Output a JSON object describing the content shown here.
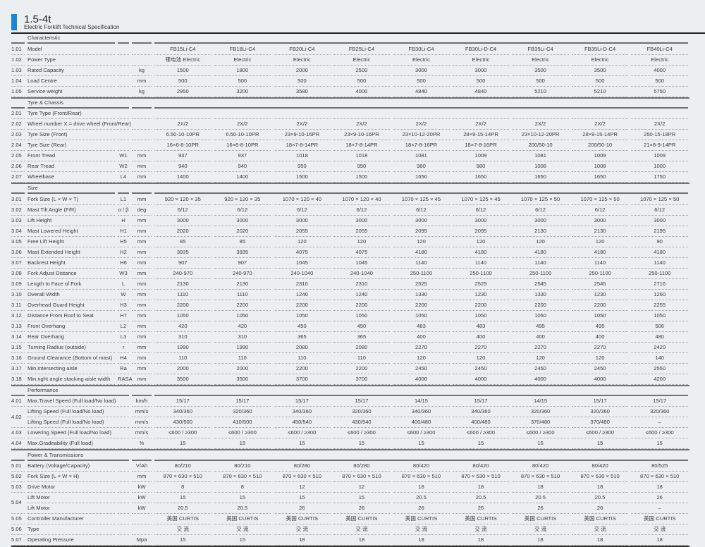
{
  "header": {
    "title": "1.5-4t",
    "subtitle": "Electric Forklift Technical Specification",
    "accent": "#1a86d3"
  },
  "sections": [
    {
      "title": "Characteristic",
      "merged": false,
      "rows": [
        {
          "num": "1.01",
          "label": "Model",
          "sym": "",
          "unit": "",
          "values": [
            "FB15Li-C4",
            "FB18Li-C4",
            "FB20Li-C4",
            "FB25Li-C4",
            "FB30Li-C4",
            "FB30Li-D-C4",
            "FB35Li-C4",
            "FB35Li-D-C4",
            "FB40Li-C4"
          ]
        },
        {
          "num": "1.02",
          "label": "Power Type",
          "sym": "",
          "unit": "",
          "values": [
            "锂电池  Electric",
            "Electric",
            "Electric",
            "Electric",
            "Electric",
            "Electric",
            "Electric",
            "Electric",
            "Electric"
          ]
        },
        {
          "num": "1.03",
          "label": "Rated Capacity",
          "sym": "",
          "unit": "kg",
          "values": [
            "1500",
            "1800",
            "2000",
            "2500",
            "3000",
            "3000",
            "3500",
            "3500",
            "4000"
          ]
        },
        {
          "num": "1.04",
          "label": "Load Centre",
          "sym": "",
          "unit": "mm",
          "values": [
            "500",
            "500",
            "500",
            "500",
            "500",
            "500",
            "500",
            "500",
            "500"
          ]
        },
        {
          "num": "1.05",
          "label": "Service weight",
          "sym": "",
          "unit": "kg",
          "values": [
            "2950",
            "3200",
            "3580",
            "4000",
            "4840",
            "4840",
            "5210",
            "5210",
            "5750"
          ]
        }
      ]
    },
    {
      "title": "Tyre & Chassis",
      "merged": true,
      "rows": [
        {
          "num": "2.01",
          "label": "Tyre Type (Front/Rear)",
          "sym": "",
          "unit": "",
          "values": [
            "",
            "",
            "",
            "",
            "",
            "",
            "",
            "",
            ""
          ]
        },
        {
          "num": "2.02",
          "label": "Wheel number X = drive wheel (Front/Rear)",
          "sym": "",
          "unit": "",
          "values": [
            "2X/2",
            "2X/2",
            "2X/2",
            "2X/2",
            "2X/2",
            "2X/2",
            "2X/2",
            "2X/2",
            "2X/2"
          ]
        },
        {
          "num": "2.03",
          "label": "Tyre Size (Front)",
          "sym": "",
          "unit": "",
          "values": [
            "6.50-10-10PR",
            "6.50-10-10PR",
            "23×9-10-16PR",
            "23×9-10-16PR",
            "23×10-12-20PR",
            "28×9-15-14PR",
            "23×10-12-20PR",
            "28×9-15-14PR",
            "250-15-18PR"
          ]
        },
        {
          "num": "2.04",
          "label": "Tyre Size (Rear)",
          "sym": "",
          "unit": "",
          "values": [
            "16×6-8-10PR",
            "16×6-8-10PR",
            "18×7-8-14PR",
            "18×7-8-14PR",
            "18×7-8-16PR",
            "18×7-8-16PR",
            "200/50-10",
            "200/50-10",
            "21×8-9-14PR"
          ]
        },
        {
          "num": "2.05",
          "label": "Front Tread",
          "sym": "W1",
          "unit": "mm",
          "values": [
            "937",
            "937",
            "1018",
            "1018",
            "1081",
            "1009",
            "1081",
            "1009",
            "1009"
          ]
        },
        {
          "num": "2.06",
          "label": "Rear Tread",
          "sym": "W2",
          "unit": "mm",
          "values": [
            "940",
            "940",
            "950",
            "950",
            "980",
            "980",
            "1008",
            "1008",
            "1000"
          ]
        },
        {
          "num": "2.07",
          "label": "Wheelbase",
          "sym": "L4",
          "unit": "mm",
          "values": [
            "1400",
            "1400",
            "1500",
            "1500",
            "1650",
            "1650",
            "1650",
            "1650",
            "1750"
          ]
        }
      ]
    },
    {
      "title": "Size",
      "merged": false,
      "rows": [
        {
          "num": "3.01",
          "label": "Fork Size (L × W × T)",
          "sym": "L1",
          "unit": "mm",
          "values": [
            "920 × 120 × 35",
            "920 × 120 × 35",
            "1070 × 120 × 40",
            "1070 × 120 × 40",
            "1070 × 125 × 45",
            "1070 × 125 × 45",
            "1070 × 125 × 50",
            "1070 × 125 × 50",
            "1070 × 125 × 50"
          ]
        },
        {
          "num": "3.02",
          "label": "Mast Tilt Angle (F/R)",
          "sym": "α / β",
          "unit": "deg",
          "values": [
            "6/12",
            "6/12",
            "6/12",
            "6/12",
            "6/12",
            "6/12",
            "6/12",
            "6/12",
            "6/12"
          ]
        },
        {
          "num": "3.03",
          "label": "Lift Height",
          "sym": "H",
          "unit": "mm",
          "values": [
            "3000",
            "3000",
            "3000",
            "3000",
            "3000",
            "3000",
            "3000",
            "3000",
            "3000"
          ]
        },
        {
          "num": "3.04",
          "label": "Mast Lowered Height",
          "sym": "H1",
          "unit": "mm",
          "values": [
            "2020",
            "2020",
            "2055",
            "2055",
            "2095",
            "2095",
            "2130",
            "2130",
            "2195"
          ]
        },
        {
          "num": "3.05",
          "label": "Free Lift Height",
          "sym": "H5",
          "unit": "mm",
          "values": [
            "85",
            "85",
            "120",
            "120",
            "120",
            "120",
            "120",
            "120",
            "90"
          ]
        },
        {
          "num": "3.06",
          "label": "Mast Extended Height",
          "sym": "H2",
          "unit": "mm",
          "values": [
            "3935",
            "3935",
            "4075",
            "4075",
            "4180",
            "4180",
            "4180",
            "4180",
            "4180"
          ]
        },
        {
          "num": "3.07",
          "label": "Backrest Height",
          "sym": "H6",
          "unit": "mm",
          "values": [
            "907",
            "907",
            "1045",
            "1045",
            "1140",
            "1140",
            "1140",
            "1140",
            "1140"
          ]
        },
        {
          "num": "3.08",
          "label": "Fork Adjust Distance",
          "sym": "W3",
          "unit": "mm",
          "values": [
            "240-970",
            "240-970",
            "240-1040",
            "240-1040",
            "250-1100",
            "250-1100",
            "250-1100",
            "250-1100",
            "250-1100"
          ]
        },
        {
          "num": "3.09",
          "label": "Length to Face of Fork",
          "sym": "L",
          "unit": "mm",
          "values": [
            "2130",
            "2130",
            "2310",
            "2310",
            "2525",
            "2525",
            "2545",
            "2545",
            "2716"
          ]
        },
        {
          "num": "3.10",
          "label": "Overall Width",
          "sym": "W",
          "unit": "mm",
          "values": [
            "1110",
            "1110",
            "1240",
            "1240",
            "1330",
            "1230",
            "1330",
            "1230",
            "1260"
          ]
        },
        {
          "num": "3.11",
          "label": "Overhead Guard Height",
          "sym": "H3",
          "unit": "mm",
          "values": [
            "2200",
            "2200",
            "2200",
            "2200",
            "2200",
            "2200",
            "2200",
            "2200",
            "2255"
          ]
        },
        {
          "num": "3.12",
          "label": "Distance From Roof to Seat",
          "sym": "H7",
          "unit": "mm",
          "values": [
            "1050",
            "1050",
            "1050",
            "1050",
            "1050",
            "1050",
            "1050",
            "1050",
            "1050"
          ]
        },
        {
          "num": "3.13",
          "label": "Front Overhang",
          "sym": "L2",
          "unit": "mm",
          "values": [
            "420",
            "420",
            "450",
            "450",
            "483",
            "483",
            "495",
            "495",
            "506"
          ]
        },
        {
          "num": "3.14",
          "label": "Rear Overhang",
          "sym": "L3",
          "unit": "mm",
          "values": [
            "310",
            "310",
            "365",
            "365",
            "400",
            "400",
            "400",
            "400",
            "480"
          ]
        },
        {
          "num": "3.15",
          "label": "Turning Radius (outside)",
          "sym": "r",
          "unit": "mm",
          "values": [
            "1990",
            "1990",
            "2080",
            "2080",
            "2270",
            "2270",
            "2270",
            "2270",
            "2420"
          ]
        },
        {
          "num": "3.16",
          "label": "Ground Clearance (Bottom of mast)",
          "sym": "H4",
          "unit": "mm",
          "values": [
            "110",
            "110",
            "110",
            "110",
            "120",
            "120",
            "120",
            "120",
            "140"
          ]
        },
        {
          "num": "3.17",
          "label": "Min.intersecting aisle",
          "sym": "Ra",
          "unit": "mm",
          "values": [
            "2000",
            "2000",
            "2200",
            "2200",
            "2450",
            "2450",
            "2450",
            "2450",
            "2550"
          ]
        },
        {
          "num": "3.18",
          "label": "Min.right angle stacking aisle width",
          "sym": "RASA",
          "unit": "mm",
          "values": [
            "3500",
            "3500",
            "3700",
            "3700",
            "4000",
            "4000",
            "4000",
            "4000",
            "4200"
          ]
        }
      ]
    },
    {
      "title": "Performance",
      "merged": true,
      "rows": [
        {
          "num": "4.01",
          "label": "Max.Travel Speed (Full load/No load)",
          "sym": "",
          "unit": "km/h",
          "values": [
            "15/17",
            "15/17",
            "15/17",
            "15/17",
            "14/15",
            "15/17",
            "14/15",
            "15/17",
            "15/17"
          ]
        },
        {
          "num": "4.02",
          "span": 2,
          "label": "Lifting Speed (Full load/No load)",
          "sym": "",
          "unit": "mm/s",
          "values": [
            "340/360",
            "320/360",
            "340/360",
            "320/360",
            "340/360",
            "340/360",
            "320/360",
            "320/360",
            "320/360"
          ]
        },
        {
          "num": "",
          "label": "Lifting Speed (Full load/No load)",
          "sym": "",
          "unit": "mm/s",
          "values": [
            "430/500",
            "410/500",
            "450/540",
            "430/540",
            "400/480",
            "400/480",
            "370/480",
            "370/480",
            "–"
          ]
        },
        {
          "num": "4.03",
          "label": "Lowering Speed (Full load/No load)",
          "sym": "",
          "unit": "mm/s",
          "values": [
            "≤600 / ≥300",
            "≤600 / ≥300",
            "≤600 / ≥300",
            "≤600 / ≥300",
            "≤600 / ≥300",
            "≤600 / ≥300",
            "≤600 / ≥300",
            "≤600 / ≥300",
            "≤600 / ≥300"
          ]
        },
        {
          "num": "4.04",
          "label": "Max.Gradeability (Full load)",
          "sym": "",
          "unit": "%",
          "values": [
            "15",
            "15",
            "15",
            "15",
            "15",
            "15",
            "15",
            "15",
            "15"
          ]
        }
      ]
    },
    {
      "title": "Power & Transmissions",
      "merged": true,
      "rows": [
        {
          "num": "5.01",
          "label": "Battery (Voltage/Capacity)",
          "sym": "",
          "unit": "V/Ah",
          "values": [
            "80/210",
            "80/210",
            "80/280",
            "80/280",
            "80/420",
            "80/420",
            "80/420",
            "80/420",
            "80/525"
          ]
        },
        {
          "num": "5.02",
          "label": "Fork Size (L × W × H)",
          "sym": "",
          "unit": "mm",
          "values": [
            "870 × 630 × 510",
            "870 × 630 × 510",
            "870 × 630 × 510",
            "870 × 630 × 510",
            "870 × 630 × 510",
            "870 × 630 × 510",
            "870 × 630 × 510",
            "870 × 630 × 510",
            "870 × 630 × 510"
          ]
        },
        {
          "num": "5.03",
          "label": "Drive Motor",
          "sym": "",
          "unit": "kW",
          "values": [
            "8",
            "8",
            "12",
            "12",
            "18",
            "18",
            "18",
            "18",
            "18"
          ]
        },
        {
          "num": "5.04",
          "span": 2,
          "label": "Lift Motor",
          "sym": "",
          "unit": "kW",
          "values": [
            "15",
            "15",
            "15",
            "15",
            "20.5",
            "20.5",
            "20.5",
            "20.5",
            "26"
          ]
        },
        {
          "num": "",
          "label": "Lift Motor",
          "sym": "",
          "unit": "kW",
          "values": [
            "20.5",
            "20.5",
            "26",
            "26",
            "26",
            "26",
            "26",
            "26",
            "–"
          ]
        },
        {
          "num": "5.05",
          "label": "Controller Manufacturer",
          "sym": "",
          "unit": "",
          "values": [
            "美国 CURTIS",
            "美国 CURTIS",
            "美国 CURTIS",
            "美国 CURTIS",
            "美国 CURTIS",
            "美国 CURTIS",
            "美国 CURTIS",
            "美国 CURTIS",
            "美国 CURTIS"
          ]
        },
        {
          "num": "5.06",
          "label": "Type",
          "sym": "",
          "unit": "",
          "values": [
            "交 流",
            "交 流",
            "交 流",
            "交 流",
            "交 流",
            "交 流",
            "交 流",
            "交 流",
            "交 流"
          ]
        },
        {
          "num": "5.07",
          "label": "Operating Pressure",
          "sym": "",
          "unit": "Mpa",
          "values": [
            "15",
            "15",
            "18",
            "18",
            "18",
            "18",
            "18",
            "18",
            "18"
          ]
        }
      ]
    }
  ]
}
